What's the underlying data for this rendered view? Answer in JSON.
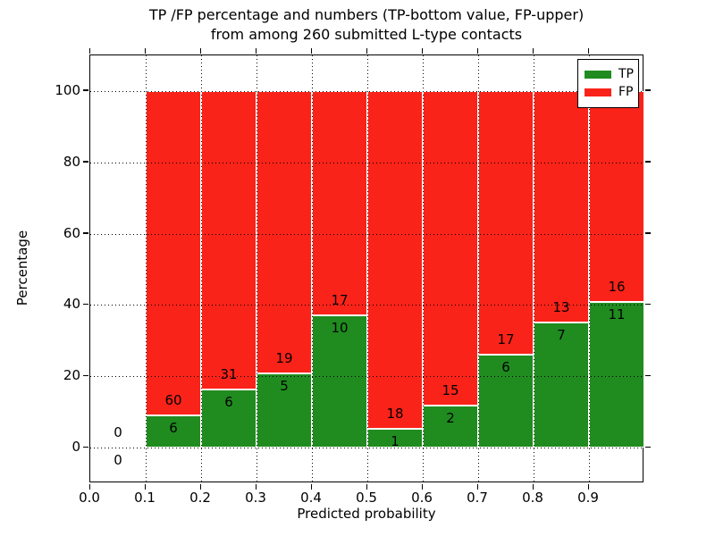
{
  "title": {
    "line1": "TP /FP percentage and numbers (TP-bottom value, FP-upper)",
    "line2": "from among 260 submitted L-type contacts"
  },
  "chart_data": {
    "type": "bar",
    "stacked": true,
    "normalized_to_percent": true,
    "title": "TP /FP percentage and numbers (TP-bottom value, FP-upper) from among 260 submitted L-type contacts",
    "xlabel": "Predicted probability",
    "ylabel": "Percentage",
    "bin_ranges": [
      "0.0-0.1",
      "0.1-0.2",
      "0.2-0.3",
      "0.3-0.4",
      "0.4-0.5",
      "0.5-0.6",
      "0.6-0.7",
      "0.7-0.8",
      "0.8-0.9",
      "0.9-1.0"
    ],
    "bin_centers": [
      0.05,
      0.15,
      0.25,
      0.35,
      0.45,
      0.55,
      0.65,
      0.75,
      0.85,
      0.95
    ],
    "bin_width": 0.1,
    "series": [
      {
        "name": "TP",
        "color": "#208c20",
        "counts": [
          0,
          6,
          6,
          5,
          10,
          1,
          2,
          6,
          7,
          11
        ]
      },
      {
        "name": "FP",
        "color": "#fa2319",
        "counts": [
          0,
          60,
          31,
          19,
          17,
          18,
          15,
          17,
          13,
          16
        ]
      }
    ],
    "total_contacts": 260,
    "x_tick_labels": [
      "0.0",
      "0.1",
      "0.2",
      "0.3",
      "0.4",
      "0.5",
      "0.6",
      "0.7",
      "0.8",
      "0.9"
    ],
    "x_tick_values": [
      0.0,
      0.1,
      0.2,
      0.3,
      0.4,
      0.5,
      0.6,
      0.7,
      0.8,
      0.9
    ],
    "y_tick_labels": [
      "0",
      "20",
      "40",
      "60",
      "80",
      "100"
    ],
    "y_tick_values": [
      0,
      20,
      40,
      60,
      80,
      100
    ],
    "xlim": [
      0.0,
      1.0
    ],
    "ylim": [
      -10,
      110
    ],
    "grid": "dotted",
    "legend": {
      "position": "upper right",
      "entries": [
        {
          "label": "TP",
          "color": "#208c20"
        },
        {
          "label": "FP",
          "color": "#fa2319"
        }
      ]
    }
  }
}
